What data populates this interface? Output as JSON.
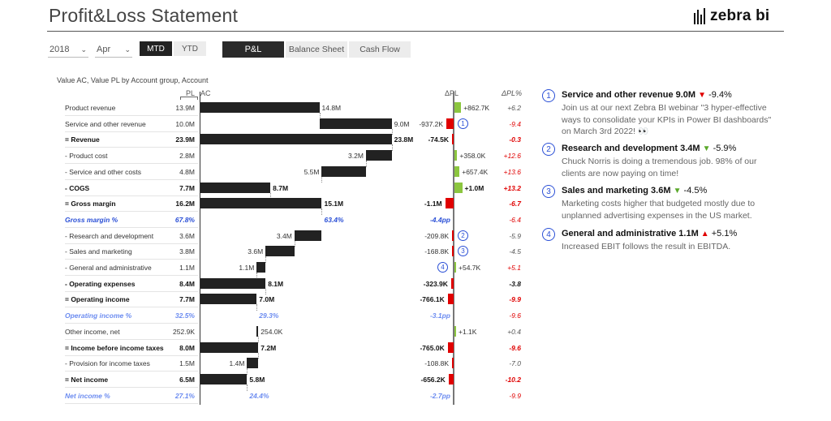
{
  "header": {
    "title": "Profit&Loss Statement",
    "logo_text": "zebra bi"
  },
  "filters": {
    "year": "2018",
    "month": "Apr",
    "period_buttons": [
      "MTD",
      "YTD"
    ],
    "report_tabs": [
      "P&L",
      "Balance Sheet",
      "Cash Flow"
    ]
  },
  "chart": {
    "subtitle": "Value AC, Value PL by Account group, Account",
    "col_pl": "PL",
    "col_ac": "AC",
    "col_dpl": "ΔPL",
    "col_dpl_pct": "ΔPL%"
  },
  "chart_data": {
    "type": "table",
    "columns": [
      "Account",
      "PL",
      "AC",
      "ΔPL",
      "ΔPL%"
    ],
    "rows": [
      {
        "label": "Product revenue",
        "style": "normal",
        "pl": "13.9M",
        "ac": "14.8M",
        "dpl": "+862.7K",
        "dpl_pct": "+6.2",
        "ac_num": 14.8,
        "dpl_num": 862.7,
        "marker": ""
      },
      {
        "label": "Service and other revenue",
        "style": "normal",
        "pl": "10.0M",
        "ac": "9.0M",
        "dpl": "-937.2K",
        "dpl_pct": "-9.4",
        "ac_num": 9.0,
        "dpl_num": -937.2,
        "marker": "1"
      },
      {
        "label": "= Revenue",
        "style": "bold",
        "pl": "23.9M",
        "ac": "23.8M",
        "dpl": "-74.5K",
        "dpl_pct": "-0.3",
        "ac_num": 23.8,
        "dpl_num": -74.5,
        "marker": ""
      },
      {
        "label": "- Product cost",
        "style": "normal",
        "pl": "2.8M",
        "ac": "3.2M",
        "dpl": "+358.0K",
        "dpl_pct": "+12.6",
        "ac_num": 3.2,
        "dpl_num": 358.0,
        "marker": ""
      },
      {
        "label": "- Service and other costs",
        "style": "normal",
        "pl": "4.8M",
        "ac": "5.5M",
        "dpl": "+657.4K",
        "dpl_pct": "+13.6",
        "ac_num": 5.5,
        "dpl_num": 657.4,
        "marker": ""
      },
      {
        "label": "- COGS",
        "style": "bold",
        "pl": "7.7M",
        "ac": "8.7M",
        "dpl": "+1.0M",
        "dpl_pct": "+13.2",
        "ac_num": 8.7,
        "dpl_num": 1000,
        "marker": ""
      },
      {
        "label": "= Gross margin",
        "style": "bold",
        "pl": "16.2M",
        "ac": "15.1M",
        "dpl": "-1.1M",
        "dpl_pct": "-6.7",
        "ac_num": 15.1,
        "dpl_num": -1100,
        "marker": ""
      },
      {
        "label": "Gross margin %",
        "style": "italic",
        "pl": "67.8%",
        "ac": "63.4%",
        "dpl": "-4.4pp",
        "dpl_pct": "-6.4",
        "marker": ""
      },
      {
        "label": "- Research and development",
        "style": "normal",
        "pl": "3.6M",
        "ac": "3.4M",
        "dpl": "-209.8K",
        "dpl_pct": "-5.9",
        "ac_num": 3.4,
        "dpl_num": -209.8,
        "marker": "2"
      },
      {
        "label": "- Sales and marketing",
        "style": "normal",
        "pl": "3.8M",
        "ac": "3.6M",
        "dpl": "-168.8K",
        "dpl_pct": "-4.5",
        "ac_num": 3.6,
        "dpl_num": -168.8,
        "marker": "3"
      },
      {
        "label": "- General and administrative",
        "style": "normal",
        "pl": "1.1M",
        "ac": "1.1M",
        "dpl": "+54.7K",
        "dpl_pct": "+5.1",
        "ac_num": 1.1,
        "dpl_num": 54.7,
        "marker": "4"
      },
      {
        "label": "- Operating expenses",
        "style": "bold",
        "pl": "8.4M",
        "ac": "8.1M",
        "dpl": "-323.9K",
        "dpl_pct": "-3.8",
        "ac_num": 8.1,
        "dpl_num": -323.9,
        "marker": ""
      },
      {
        "label": "= Operating income",
        "style": "bold",
        "pl": "7.7M",
        "ac": "7.0M",
        "dpl": "-766.1K",
        "dpl_pct": "-9.9",
        "ac_num": 7.0,
        "dpl_num": -766.1,
        "marker": ""
      },
      {
        "label": "Operating income %",
        "style": "italic-light",
        "pl": "32.5%",
        "ac": "29.3%",
        "dpl": "-3.1pp",
        "dpl_pct": "-9.6",
        "marker": ""
      },
      {
        "label": "Other income, net",
        "style": "normal",
        "pl": "252.9K",
        "ac": "254.0K",
        "dpl": "+1.1K",
        "dpl_pct": "+0.4",
        "ac_num": 0.254,
        "dpl_num": 1.1,
        "marker": ""
      },
      {
        "label": "= Income before income taxes",
        "style": "bold",
        "pl": "8.0M",
        "ac": "7.2M",
        "dpl": "-765.0K",
        "dpl_pct": "-9.6",
        "ac_num": 7.2,
        "dpl_num": -765.0,
        "marker": ""
      },
      {
        "label": "- Provision for income taxes",
        "style": "normal",
        "pl": "1.5M",
        "ac": "1.4M",
        "dpl": "-108.8K",
        "dpl_pct": "-7.0",
        "ac_num": 1.4,
        "dpl_num": -108.8,
        "marker": ""
      },
      {
        "label": "= Net income",
        "style": "bold",
        "pl": "6.5M",
        "ac": "5.8M",
        "dpl": "-656.2K",
        "dpl_pct": "-10.2",
        "ac_num": 5.8,
        "dpl_num": -656.2,
        "marker": ""
      },
      {
        "label": "Net income %",
        "style": "italic-light",
        "pl": "27.1%",
        "ac": "24.4%",
        "dpl": "-2.7pp",
        "dpl_pct": "-9.9",
        "marker": ""
      }
    ]
  },
  "comments": [
    {
      "num": "1",
      "title": "Service and other revenue 9.0M",
      "arrow": "▼",
      "arrow_color": "red",
      "change": "-9.4%",
      "body": "Join us at our next Zebra BI webinar \"3 hyper-effective ways to consolidate your KPIs in Power BI dashboards\" on March 3rd 2022! 👀"
    },
    {
      "num": "2",
      "title": "Research and development 3.4M",
      "arrow": "▼",
      "arrow_color": "green",
      "change": "-5.9%",
      "body": "Chuck Norris is doing a tremendous job. 98% of our clients are now paying on time!"
    },
    {
      "num": "3",
      "title": "Sales and marketing 3.6M",
      "arrow": "▼",
      "arrow_color": "green",
      "change": "-4.5%",
      "body": "Marketing costs higher that budgeted mostly due to unplanned advertising expenses in the US market."
    },
    {
      "num": "4",
      "title": "General and administrative 1.1M",
      "arrow": "▲",
      "arrow_color": "red",
      "change": "+5.1%",
      "body": "Increased EBIT follows the result in EBITDA."
    }
  ],
  "colors": {
    "positive": "#8cc63f",
    "negative": "#e00000",
    "bar": "#222222",
    "accent": "#2a4fd6"
  }
}
